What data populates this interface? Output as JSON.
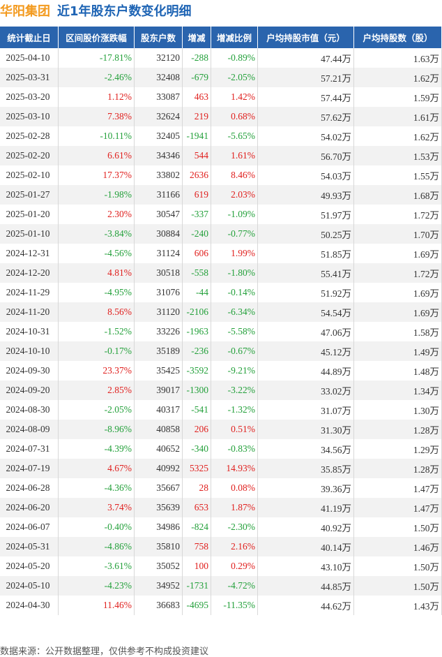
{
  "header": {
    "company": "华阳集团",
    "title": "近1年股东户数变化明细"
  },
  "table": {
    "columns": [
      "统计截止日",
      "区间股价涨跌幅",
      "股东户数",
      "增减",
      "增减比例",
      "户均持股市值（元）",
      "户均持股数（股）"
    ],
    "rows": [
      [
        "2025-04-10",
        "-17.81%",
        "32120",
        "-288",
        "-0.89%",
        "47.44万",
        "1.63万"
      ],
      [
        "2025-03-31",
        "-2.46%",
        "32408",
        "-679",
        "-2.05%",
        "57.21万",
        "1.62万"
      ],
      [
        "2025-03-20",
        "1.12%",
        "33087",
        "463",
        "1.42%",
        "57.44万",
        "1.59万"
      ],
      [
        "2025-03-10",
        "7.38%",
        "32624",
        "219",
        "0.68%",
        "57.62万",
        "1.61万"
      ],
      [
        "2025-02-28",
        "-10.11%",
        "32405",
        "-1941",
        "-5.65%",
        "54.02万",
        "1.62万"
      ],
      [
        "2025-02-20",
        "6.61%",
        "34346",
        "544",
        "1.61%",
        "56.70万",
        "1.53万"
      ],
      [
        "2025-02-10",
        "17.37%",
        "33802",
        "2636",
        "8.46%",
        "54.03万",
        "1.55万"
      ],
      [
        "2025-01-27",
        "-1.98%",
        "31166",
        "619",
        "2.03%",
        "49.93万",
        "1.68万"
      ],
      [
        "2025-01-20",
        "2.30%",
        "30547",
        "-337",
        "-1.09%",
        "51.97万",
        "1.72万"
      ],
      [
        "2025-01-10",
        "-3.84%",
        "30884",
        "-240",
        "-0.77%",
        "50.25万",
        "1.70万"
      ],
      [
        "2024-12-31",
        "-4.56%",
        "31124",
        "606",
        "1.99%",
        "51.85万",
        "1.69万"
      ],
      [
        "2024-12-20",
        "4.81%",
        "30518",
        "-558",
        "-1.80%",
        "55.41万",
        "1.72万"
      ],
      [
        "2024-11-29",
        "-4.95%",
        "31076",
        "-44",
        "-0.14%",
        "51.92万",
        "1.69万"
      ],
      [
        "2024-11-20",
        "8.56%",
        "31120",
        "-2106",
        "-6.34%",
        "54.54万",
        "1.69万"
      ],
      [
        "2024-10-31",
        "-1.52%",
        "33226",
        "-1963",
        "-5.58%",
        "47.06万",
        "1.58万"
      ],
      [
        "2024-10-10",
        "-0.17%",
        "35189",
        "-236",
        "-0.67%",
        "45.12万",
        "1.49万"
      ],
      [
        "2024-09-30",
        "23.37%",
        "35425",
        "-3592",
        "-9.21%",
        "44.89万",
        "1.48万"
      ],
      [
        "2024-09-20",
        "2.85%",
        "39017",
        "-1300",
        "-3.22%",
        "33.02万",
        "1.34万"
      ],
      [
        "2024-08-30",
        "-2.05%",
        "40317",
        "-541",
        "-1.32%",
        "31.07万",
        "1.30万"
      ],
      [
        "2024-08-09",
        "-8.96%",
        "40858",
        "206",
        "0.51%",
        "31.30万",
        "1.28万"
      ],
      [
        "2024-07-31",
        "-4.39%",
        "40652",
        "-340",
        "-0.83%",
        "34.56万",
        "1.29万"
      ],
      [
        "2024-07-19",
        "4.67%",
        "40992",
        "5325",
        "14.93%",
        "35.85万",
        "1.28万"
      ],
      [
        "2024-06-28",
        "-4.36%",
        "35667",
        "28",
        "0.08%",
        "39.36万",
        "1.47万"
      ],
      [
        "2024-06-20",
        "3.74%",
        "35639",
        "653",
        "1.87%",
        "41.19万",
        "1.47万"
      ],
      [
        "2024-06-07",
        "-0.40%",
        "34986",
        "-824",
        "-2.30%",
        "40.92万",
        "1.50万"
      ],
      [
        "2024-05-31",
        "-4.86%",
        "35810",
        "758",
        "2.16%",
        "40.14万",
        "1.46万"
      ],
      [
        "2024-05-20",
        "-3.61%",
        "35052",
        "100",
        "0.29%",
        "43.10万",
        "1.50万"
      ],
      [
        "2024-05-10",
        "-4.23%",
        "34952",
        "-1731",
        "-4.72%",
        "44.85万",
        "1.50万"
      ],
      [
        "2024-04-30",
        "11.46%",
        "36683",
        "-4695",
        "-11.35%",
        "44.62万",
        "1.43万"
      ]
    ]
  },
  "footer": "数据来源：公开数据整理，仅供参考不构成投资建议"
}
